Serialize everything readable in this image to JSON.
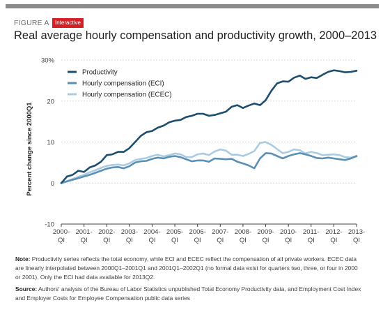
{
  "header": {
    "figure_label": "FIGURE A",
    "badge": "Interactive",
    "title": "Real average hourly compensation and productivity growth, 2000–2013"
  },
  "chart_data": {
    "type": "line",
    "title": "Real average hourly compensation and productivity growth, 2000–2013",
    "xlabel": "",
    "ylabel": "Percent change since 2000Q1",
    "ylim": [
      -10,
      30
    ],
    "yticks": [
      -10,
      0,
      10,
      20,
      30
    ],
    "ytick_labels": [
      "-10",
      "0",
      "10",
      "20",
      "30%"
    ],
    "x_start_year": 2000,
    "x_tick_labels": [
      {
        "year": "2000-",
        "q": "QI"
      },
      {
        "year": "2001-",
        "q": "QI"
      },
      {
        "year": "2002-",
        "q": "QI"
      },
      {
        "year": "2003-",
        "q": "QI"
      },
      {
        "year": "2004-",
        "q": "QI"
      },
      {
        "year": "2005-",
        "q": "QI"
      },
      {
        "year": "2006-",
        "q": "QI"
      },
      {
        "year": "2007-",
        "q": "QI"
      },
      {
        "year": "2008-",
        "q": "QI"
      },
      {
        "year": "2009-",
        "q": "QI"
      },
      {
        "year": "2010-",
        "q": "QI"
      },
      {
        "year": "2011-",
        "q": "QI"
      },
      {
        "year": "2012-",
        "q": "QI"
      },
      {
        "year": "2013-",
        "q": "QI"
      }
    ],
    "grid": true,
    "legend_position": "top-left",
    "series": [
      {
        "name": "Productivity",
        "color": "#1d4e6e",
        "values": [
          0,
          1.6,
          2.0,
          3.0,
          2.7,
          3.8,
          4.3,
          5.2,
          6.8,
          7.0,
          7.6,
          7.6,
          8.5,
          10.0,
          11.5,
          12.4,
          12.7,
          13.5,
          14.0,
          14.8,
          15.2,
          15.4,
          16.1,
          16.4,
          16.9,
          16.9,
          16.4,
          16.6,
          17.0,
          17.4,
          18.6,
          19.0,
          18.3,
          18.9,
          19.4,
          19.0,
          20.2,
          22.5,
          24.3,
          24.8,
          24.7,
          25.7,
          26.2,
          25.4,
          25.8,
          25.6,
          26.4,
          27.1,
          27.5,
          27.3,
          27.0,
          27.1,
          27.4
        ]
      },
      {
        "name": "Hourly compensation (ECI)",
        "color": "#5b8fb4",
        "values": [
          0,
          0.4,
          0.8,
          1.2,
          1.6,
          2.0,
          2.5,
          3.0,
          3.5,
          3.8,
          3.9,
          3.6,
          4.1,
          5.0,
          5.3,
          5.4,
          5.9,
          6.2,
          6.0,
          6.4,
          6.6,
          6.3,
          5.8,
          5.3,
          5.5,
          5.5,
          5.2,
          6.0,
          5.9,
          5.8,
          5.9,
          5.2,
          4.8,
          4.3,
          3.6,
          6.0,
          7.3,
          7.2,
          6.6,
          6.0,
          6.6,
          7.0,
          7.3,
          7.0,
          6.6,
          6.1,
          6.0,
          6.2,
          6.0,
          5.8,
          5.6,
          6.0,
          6.6
        ]
      },
      {
        "name": "Hourly compensation (ECEC)",
        "color": "#a9cce3",
        "values": [
          0,
          0.5,
          1.0,
          1.5,
          2.0,
          2.6,
          3.1,
          3.7,
          4.2,
          4.4,
          4.5,
          4.3,
          4.8,
          5.6,
          5.9,
          6.1,
          6.6,
          6.9,
          6.5,
          6.8,
          7.2,
          7.0,
          6.3,
          6.3,
          7.0,
          7.2,
          6.8,
          7.7,
          8.2,
          7.9,
          6.9,
          6.9,
          6.6,
          7.1,
          7.8,
          9.8,
          10.0,
          9.3,
          8.3,
          7.3,
          7.6,
          8.2,
          8.0,
          7.2,
          7.6,
          7.3,
          6.8,
          6.9,
          7.0,
          6.8,
          6.3,
          6.2,
          6.5
        ]
      }
    ]
  },
  "notes": {
    "note_label": "Note:",
    "note_text": " Productivity series reflects the total economy, while ECI and ECEC reflect the compensation of all private workers. ECEC data are linearly interpolated between 2000Q1–2001Q1 and 2001Q1–2002Q1 (no formal data exist for quarters two, three, or four in 2000 or 2001). Only the ECI had data available for 2013Q2.",
    "source_label": "Source:",
    "source_text": " Authors' analysis of the Bureau of Labor Statistics unpublished Total Economy Productivity data, and Employment Cost Index and Employer Costs for Employee Compensation public data series"
  }
}
